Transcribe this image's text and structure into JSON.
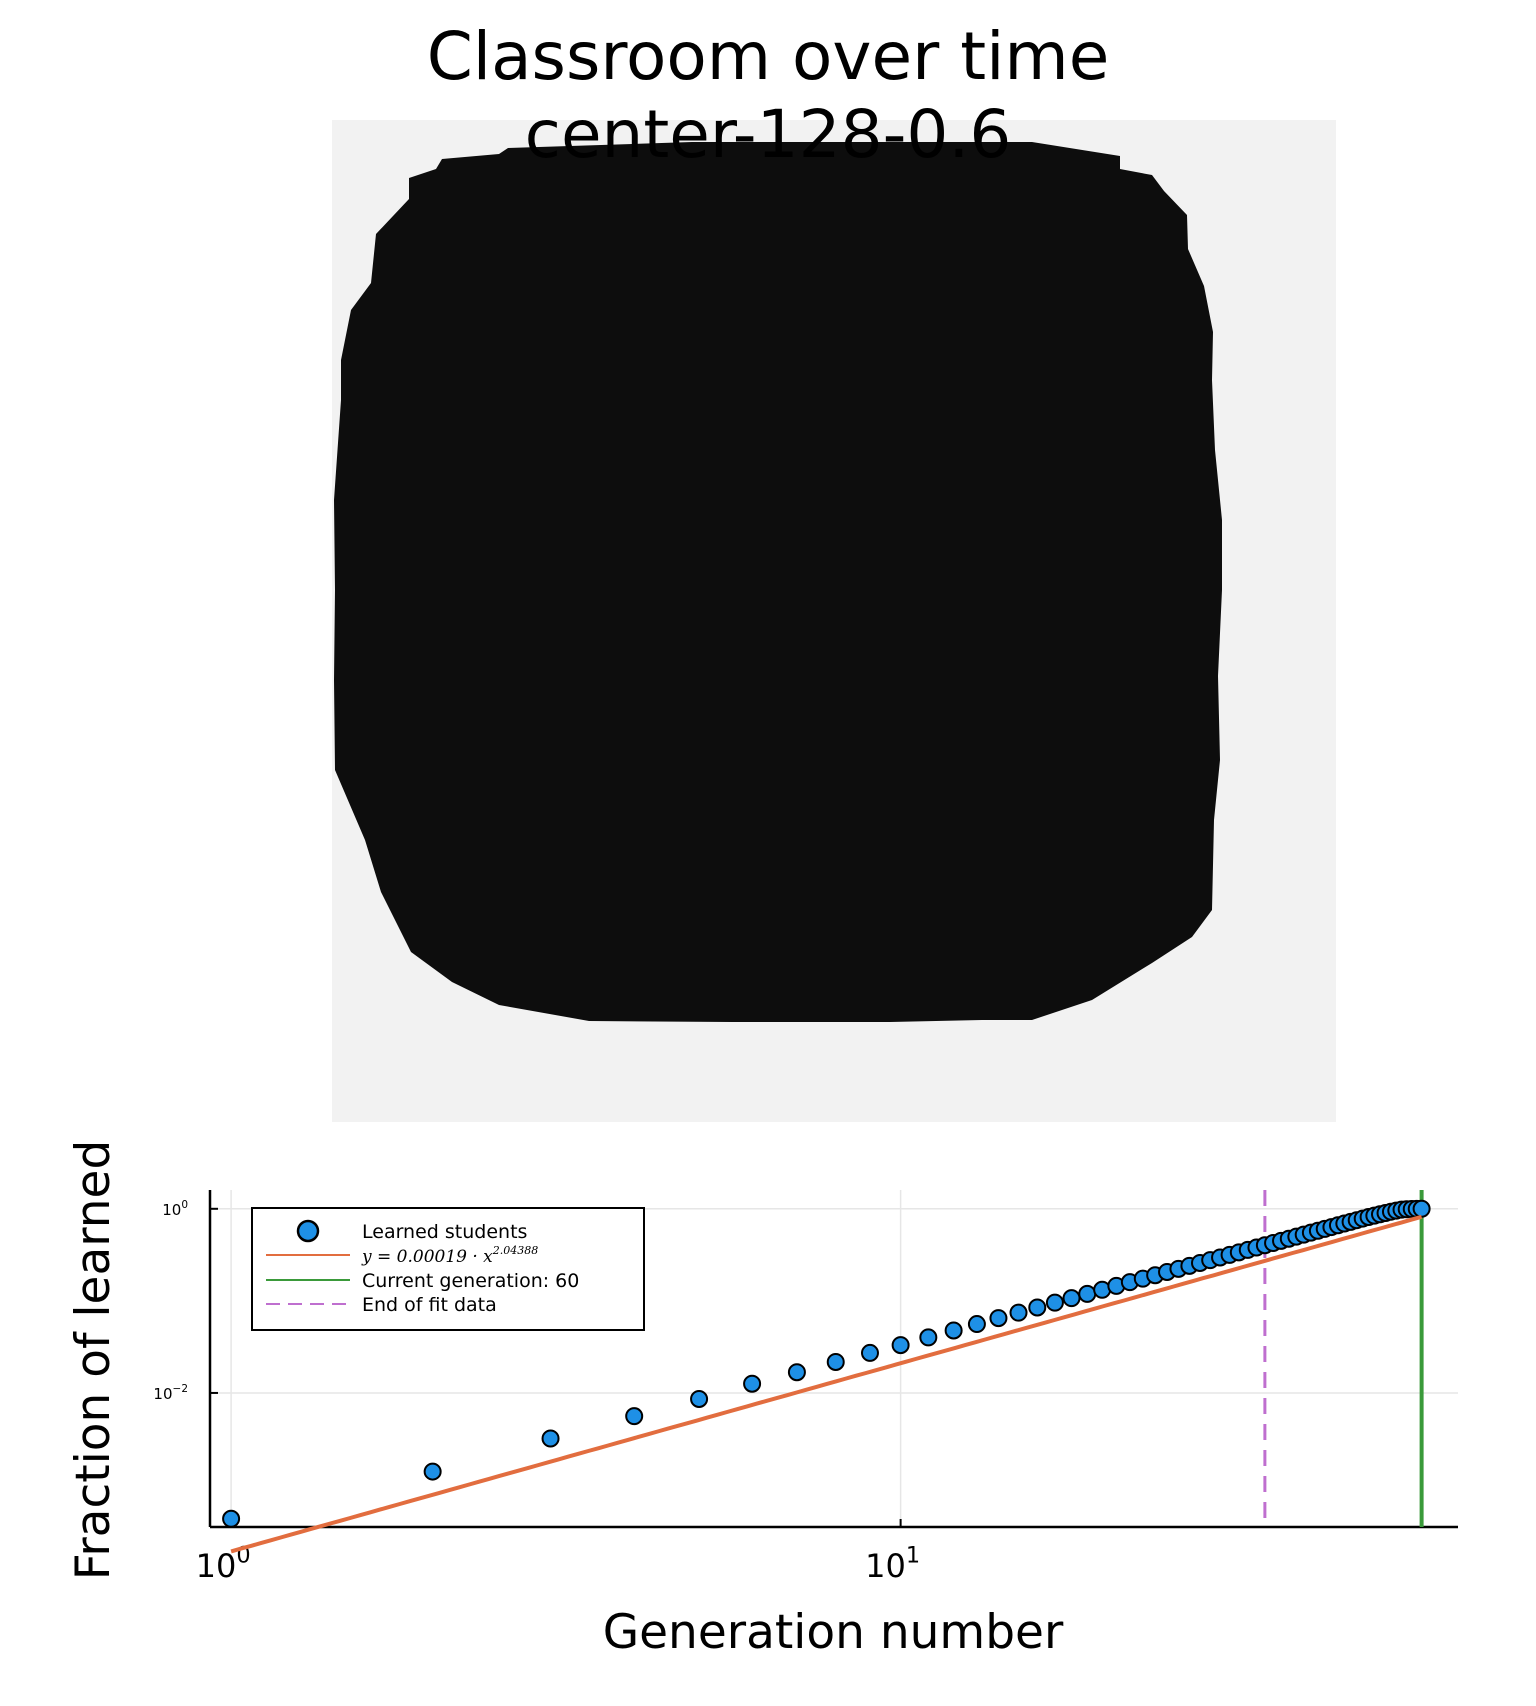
{
  "title": "Classroom over time",
  "subtitle": "center-128-0.6",
  "heatmap": {
    "background_color": "#f2f2f2",
    "fill_color": "#0d0d0d"
  },
  "chart_data": {
    "type": "scatter",
    "xlabel": "Generation number",
    "ylabel": "Fraction of learned",
    "xscale": "log",
    "yscale": "log",
    "xlim": [
      0.93,
      68
    ],
    "ylim": [
      0.00035,
      1.6
    ],
    "xticks": [
      1,
      10
    ],
    "xtick_labels": [
      "10^0",
      "10^1"
    ],
    "yticks": [
      0.01,
      1
    ],
    "ytick_labels": [
      "10^-2",
      "10^0"
    ],
    "grid": true,
    "legend_position": "top-left",
    "series": [
      {
        "name": "Learned students",
        "kind": "scatter",
        "color": "#1e90e6",
        "x_range": [
          1,
          60
        ],
        "x_step": 1,
        "points": [
          [
            1,
            0.00043
          ],
          [
            2,
            0.0014
          ],
          [
            3,
            0.0032
          ],
          [
            4,
            0.0056
          ],
          [
            5,
            0.0086
          ],
          [
            6,
            0.0126
          ],
          [
            7,
            0.0168
          ],
          [
            8,
            0.0217
          ],
          [
            9,
            0.0272
          ],
          [
            10,
            0.0331
          ],
          [
            11,
            0.0401
          ],
          [
            12,
            0.0477
          ],
          [
            13,
            0.056
          ],
          [
            14,
            0.065
          ],
          [
            15,
            0.0745
          ],
          [
            16,
            0.0848
          ],
          [
            17,
            0.0957
          ],
          [
            18,
            0.107
          ],
          [
            19,
            0.119
          ],
          [
            20,
            0.132
          ],
          [
            25,
            0.206
          ],
          [
            30,
            0.296
          ],
          [
            35,
            0.402
          ],
          [
            40,
            0.524
          ],
          [
            45,
            0.662
          ],
          [
            50,
            0.815
          ],
          [
            54,
            0.93
          ],
          [
            56,
            0.98
          ],
          [
            58,
            0.995
          ],
          [
            60,
            1.0
          ]
        ]
      },
      {
        "name": "y = 0.00019 · x^2.04388",
        "name_base": "y = 0.00019 · x",
        "name_exponent": "2.04388",
        "kind": "line",
        "color": "#e26d3f",
        "coefficient": 0.00019,
        "exponent": 2.04388,
        "x_range": [
          1,
          60
        ]
      },
      {
        "name": "Current generation: 60",
        "kind": "vline",
        "color": "#3a9a3a",
        "x": 60
      },
      {
        "name": "End of fit data",
        "kind": "vline-dashed",
        "color": "#bf6fcf",
        "x": 35
      }
    ]
  }
}
